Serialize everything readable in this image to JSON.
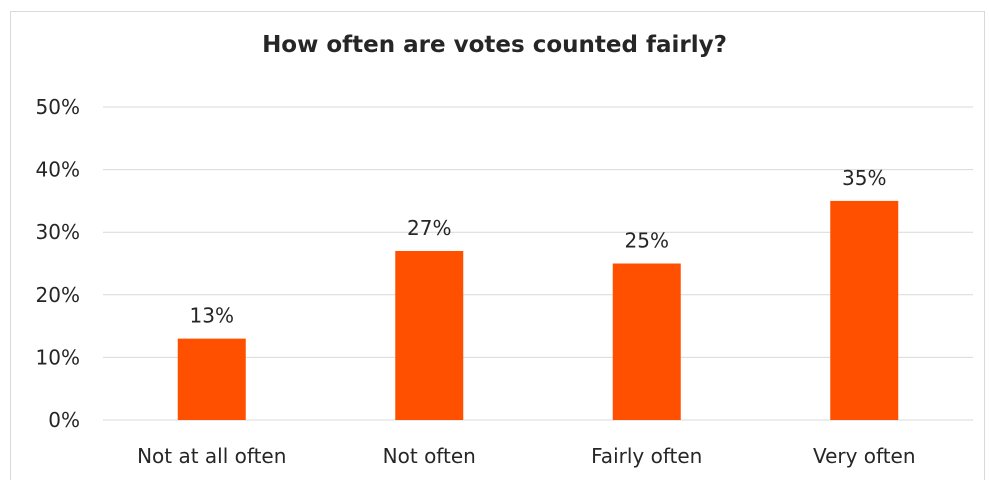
{
  "chart_data": {
    "type": "bar",
    "title": "How often are votes counted fairly?",
    "categories": [
      "Not at all often",
      "Not often",
      "Fairly often",
      "Very often"
    ],
    "values": [
      13,
      27,
      25,
      35
    ],
    "value_labels": [
      "13%",
      "27%",
      "25%",
      "35%"
    ],
    "y_ticks": [
      0,
      10,
      20,
      30,
      40,
      50
    ],
    "y_tick_labels": [
      "0%",
      "10%",
      "20%",
      "30%",
      "40%",
      "50%"
    ],
    "ylim": [
      0,
      50
    ],
    "xlabel": "",
    "ylabel": "",
    "grid": true,
    "legend": "none",
    "bar_color": "#ff5000",
    "gridline_color": "#d9d9d9"
  }
}
